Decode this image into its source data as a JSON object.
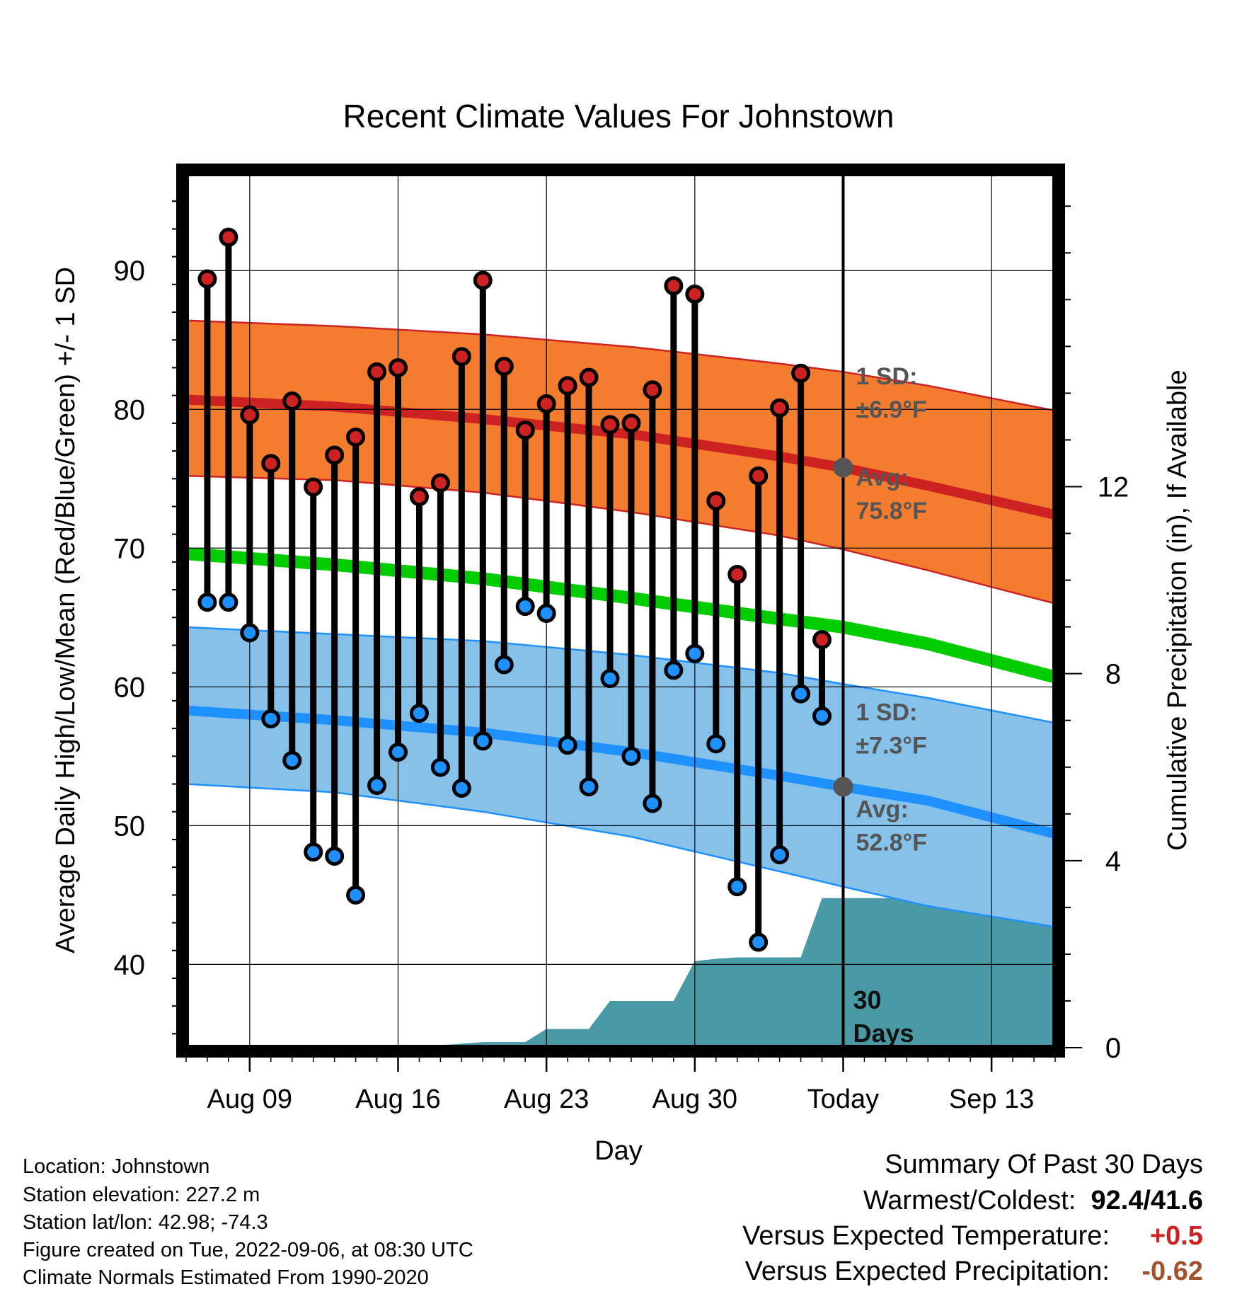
{
  "chart_data": {
    "type": "line",
    "title": "Recent Climate Values For Johnstown",
    "xlabel": "Day",
    "ylabel": "Average Daily High/Low/Mean (Red/Blue/Green) +/- 1 SD",
    "y2label": "Cumulative Precipitation (in), If Available",
    "ylim": [
      34,
      97
    ],
    "y2lim": [
      0,
      18.7
    ],
    "y_ticks": [
      "40",
      "50",
      "60",
      "70",
      "80",
      "90"
    ],
    "y2_ticks": [
      "0",
      "4",
      "8",
      "12"
    ],
    "x_start_date": "2022-08-06",
    "x_end_date": "2022-09-16",
    "x_ticks": [
      {
        "date": "2022-08-09",
        "label": "Aug 09"
      },
      {
        "date": "2022-08-16",
        "label": "Aug 16"
      },
      {
        "date": "2022-08-23",
        "label": "Aug 23"
      },
      {
        "date": "2022-08-30",
        "label": "Aug 30"
      },
      {
        "date": "2022-09-06",
        "label": "Today"
      },
      {
        "date": "2022-09-13",
        "label": "Sep 13"
      }
    ],
    "today_date": "2022-09-06",
    "grid": true,
    "series": [
      {
        "name": "Daily High",
        "color": "#cc2222",
        "x": [
          "2022-08-07",
          "2022-08-08",
          "2022-08-09",
          "2022-08-10",
          "2022-08-11",
          "2022-08-12",
          "2022-08-13",
          "2022-08-14",
          "2022-08-15",
          "2022-08-16",
          "2022-08-17",
          "2022-08-18",
          "2022-08-19",
          "2022-08-20",
          "2022-08-21",
          "2022-08-22",
          "2022-08-23",
          "2022-08-24",
          "2022-08-25",
          "2022-08-26",
          "2022-08-27",
          "2022-08-28",
          "2022-08-29",
          "2022-08-30",
          "2022-08-31",
          "2022-09-01",
          "2022-09-02",
          "2022-09-03",
          "2022-09-04",
          "2022-09-05"
        ],
        "y": [
          89.4,
          92.4,
          79.6,
          76.1,
          80.6,
          74.4,
          76.7,
          78.0,
          82.7,
          83.0,
          73.7,
          74.7,
          83.8,
          89.3,
          83.1,
          78.5,
          80.4,
          81.7,
          82.3,
          78.9,
          79.0,
          81.4,
          88.9,
          88.3,
          73.4,
          68.1,
          75.2,
          80.1,
          82.6,
          63.4
        ]
      },
      {
        "name": "Daily Low",
        "color": "#1e90ff",
        "x": [
          "2022-08-07",
          "2022-08-08",
          "2022-08-09",
          "2022-08-10",
          "2022-08-11",
          "2022-08-12",
          "2022-08-13",
          "2022-08-14",
          "2022-08-15",
          "2022-08-16",
          "2022-08-17",
          "2022-08-18",
          "2022-08-19",
          "2022-08-20",
          "2022-08-21",
          "2022-08-22",
          "2022-08-23",
          "2022-08-24",
          "2022-08-25",
          "2022-08-26",
          "2022-08-27",
          "2022-08-28",
          "2022-08-29",
          "2022-08-30",
          "2022-08-31",
          "2022-09-01",
          "2022-09-02",
          "2022-09-03",
          "2022-09-04",
          "2022-09-05"
        ],
        "y": [
          66.1,
          66.1,
          63.9,
          57.7,
          54.7,
          48.1,
          47.8,
          45.0,
          52.9,
          55.3,
          58.1,
          54.2,
          52.7,
          56.1,
          61.6,
          65.8,
          65.3,
          55.8,
          52.8,
          60.6,
          55.0,
          51.6,
          61.2,
          62.4,
          55.9,
          45.6,
          41.6,
          47.9,
          59.5,
          57.9
        ]
      },
      {
        "name": "Normal High",
        "color": "#cc2222",
        "x": [
          "2022-08-06",
          "2022-08-13",
          "2022-08-20",
          "2022-08-27",
          "2022-09-03",
          "2022-09-06",
          "2022-09-10",
          "2022-09-16"
        ],
        "y": [
          80.7,
          80.2,
          79.3,
          78.2,
          76.6,
          75.8,
          74.5,
          72.4
        ]
      },
      {
        "name": "Normal High +1 SD",
        "color": "#cc2222",
        "x": [
          "2022-08-06",
          "2022-08-13",
          "2022-08-20",
          "2022-08-27",
          "2022-09-03",
          "2022-09-06",
          "2022-09-10",
          "2022-09-16"
        ],
        "y": [
          86.4,
          86.0,
          85.4,
          84.5,
          83.3,
          82.7,
          81.7,
          79.9
        ]
      },
      {
        "name": "Normal High -1 SD",
        "color": "#cc2222",
        "x": [
          "2022-08-06",
          "2022-08-13",
          "2022-08-20",
          "2022-08-27",
          "2022-09-03",
          "2022-09-06",
          "2022-09-10",
          "2022-09-16"
        ],
        "y": [
          75.2,
          74.9,
          74.0,
          72.6,
          70.9,
          69.9,
          68.4,
          66.0
        ]
      },
      {
        "name": "Normal Mean",
        "color": "#00cc00",
        "x": [
          "2022-08-06",
          "2022-08-13",
          "2022-08-20",
          "2022-08-27",
          "2022-09-03",
          "2022-09-06",
          "2022-09-10",
          "2022-09-16"
        ],
        "y": [
          69.6,
          68.8,
          67.8,
          66.4,
          64.9,
          64.3,
          63.1,
          60.7
        ]
      },
      {
        "name": "Normal Low",
        "color": "#1e90ff",
        "x": [
          "2022-08-06",
          "2022-08-13",
          "2022-08-20",
          "2022-08-27",
          "2022-09-03",
          "2022-09-06",
          "2022-09-10",
          "2022-09-16"
        ],
        "y": [
          58.3,
          57.6,
          56.7,
          55.3,
          53.6,
          52.8,
          51.8,
          49.4
        ]
      },
      {
        "name": "Normal Low +1 SD",
        "color": "#1e90ff",
        "x": [
          "2022-08-06",
          "2022-08-13",
          "2022-08-20",
          "2022-08-27",
          "2022-09-03",
          "2022-09-06",
          "2022-09-10",
          "2022-09-16"
        ],
        "y": [
          64.3,
          63.8,
          63.3,
          62.3,
          61.0,
          60.2,
          59.2,
          57.4
        ]
      },
      {
        "name": "Normal Low -1 SD",
        "color": "#1e90ff",
        "x": [
          "2022-08-06",
          "2022-08-13",
          "2022-08-20",
          "2022-08-27",
          "2022-09-03",
          "2022-09-06",
          "2022-09-10",
          "2022-09-16"
        ],
        "y": [
          53.0,
          52.4,
          51.0,
          49.2,
          46.7,
          45.6,
          44.2,
          42.7
        ]
      },
      {
        "name": "Cumulative Precipitation",
        "color": "#4a9aa5",
        "x": [
          "2022-08-06",
          "2022-08-17",
          "2022-08-20",
          "2022-08-22",
          "2022-08-23",
          "2022-08-25",
          "2022-08-26",
          "2022-08-29",
          "2022-08-30",
          "2022-08-31",
          "2022-09-01",
          "2022-09-02",
          "2022-09-03",
          "2022-09-04",
          "2022-09-05",
          "2022-09-16"
        ],
        "y": [
          0.0,
          0.02,
          0.12,
          0.12,
          0.4,
          0.4,
          1.0,
          1.0,
          1.85,
          1.9,
          1.93,
          1.93,
          1.93,
          1.93,
          3.2,
          3.2
        ]
      }
    ],
    "annotations": [
      {
        "key": "high_sd_line1",
        "text": "1 SD:"
      },
      {
        "key": "high_sd_line2",
        "text": "±6.9°F"
      },
      {
        "key": "high_avg_line1",
        "text": "Avg:"
      },
      {
        "key": "high_avg_line2",
        "text": "75.8°F"
      },
      {
        "key": "low_sd_line1",
        "text": "1 SD:"
      },
      {
        "key": "low_sd_line2",
        "text": "±7.3°F"
      },
      {
        "key": "low_avg_line1",
        "text": "Avg:"
      },
      {
        "key": "low_avg_line2",
        "text": "52.8°F"
      },
      {
        "key": "days_line1",
        "text": "30"
      },
      {
        "key": "days_line2",
        "text": "Days"
      }
    ],
    "colors": {
      "high_band": "#f47c2f",
      "low_band": "#85c1e9",
      "mean_line": "#00cc00",
      "high_line": "#cc2222",
      "low_line": "#1e90ff",
      "precip": "#4a9aa5"
    }
  },
  "metadata": {
    "location": "Location: Johnstown",
    "elevation": "Station elevation: 227.2 m",
    "latlon": "Station lat/lon: 42.98; -74.3",
    "created": "Figure created on Tue, 2022-09-06, at 08:30 UTC",
    "normals": "Climate Normals Estimated From 1990-2020"
  },
  "summary": {
    "title": "Summary Of Past 30 Days",
    "warmest_label": "Warmest/Coldest:",
    "warmest_value": "92.4/41.6",
    "temp_label": "Versus Expected Temperature:",
    "temp_value": "+0.5",
    "temp_color": "#cc2222",
    "precip_label": "Versus Expected Precipitation:",
    "precip_value": "-0.62",
    "precip_color": "#a0522d"
  }
}
